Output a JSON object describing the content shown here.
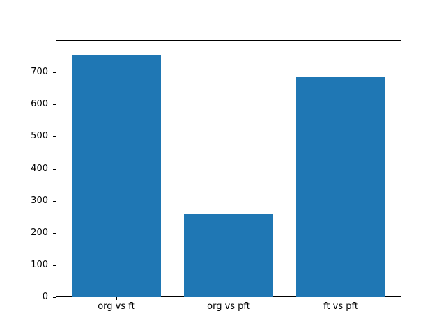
{
  "chart_data": {
    "type": "bar",
    "categories": [
      "org vs ft",
      "org vs pft",
      "ft vs pft"
    ],
    "values": [
      755,
      258,
      685
    ],
    "title": "",
    "xlabel": "",
    "ylabel": "",
    "ylim": [
      0,
      800
    ],
    "yticks": [
      0,
      100,
      200,
      300,
      400,
      500,
      600,
      700
    ],
    "bar_color": "#1f77b4",
    "axis_color": "#000000",
    "background_color": "#ffffff",
    "grid": false,
    "legend": false
  }
}
